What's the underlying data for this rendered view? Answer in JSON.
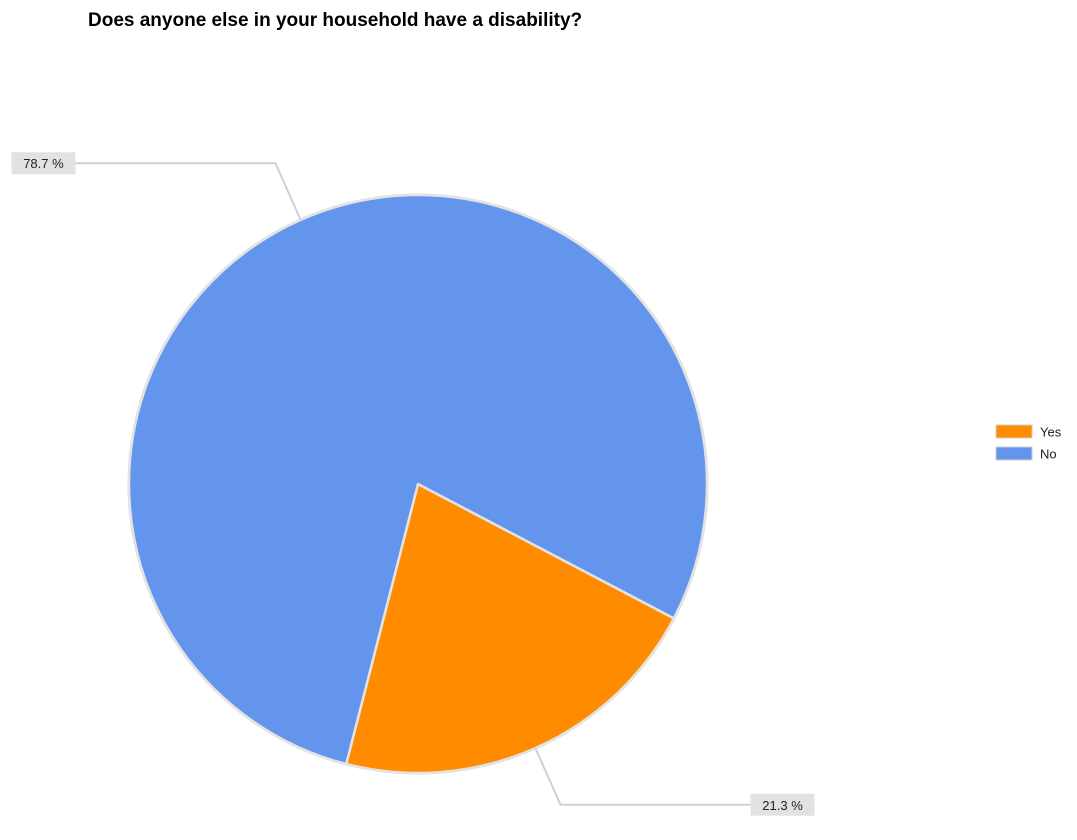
{
  "chart_data": {
    "type": "pie",
    "title": "Does anyone else in your household have a disability?",
    "categories": [
      "Yes",
      "No"
    ],
    "values": [
      21.3,
      78.7
    ],
    "data_labels": [
      "21.3 %",
      "78.7 %"
    ],
    "colors": [
      "#FF8C00",
      "#6495ED"
    ],
    "legend": {
      "position": "right",
      "entries": [
        "Yes",
        "No"
      ]
    }
  }
}
